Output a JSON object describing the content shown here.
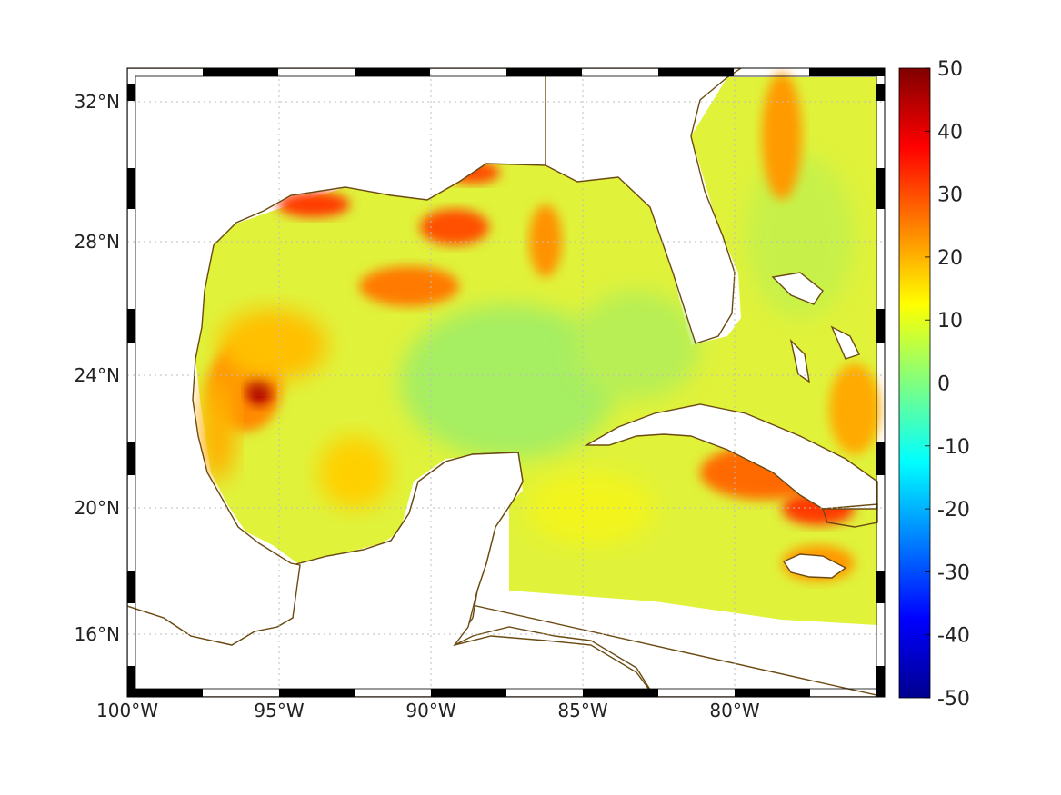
{
  "map": {
    "region": "Gulf of Mexico and western Caribbean",
    "projection": "mercator",
    "lon_range": [
      -100,
      -75
    ],
    "lat_range": [
      14.3,
      33
    ],
    "graticule": "dotted grid every 5 deg longitude and 4 deg latitude",
    "frame": "black and white alternating border",
    "coastline_color": "#6b4a12",
    "land_color": "#ffffff"
  },
  "axes": {
    "x_ticks": [
      "100°W",
      "95°W",
      "90°W",
      "85°W",
      "80°W"
    ],
    "y_ticks": [
      "32°N",
      "28°N",
      "24°N",
      "20°N",
      "16°N"
    ]
  },
  "colorbar": {
    "colormap": "jet",
    "range": [
      -50,
      50
    ],
    "ticks": [
      "50",
      "40",
      "30",
      "20",
      "10",
      "0",
      "-10",
      "-20",
      "-30",
      "-40",
      "-50"
    ]
  },
  "field_highlights": [
    {
      "label": "hot spot west Gulf near 96W 23.5N",
      "value": 45
    },
    {
      "label": "hot band off Mississippi/Louisiana coast",
      "value": 30
    },
    {
      "label": "high over south-east Cuba",
      "value": 35
    },
    {
      "label": "high off Georgia coast near 78W 31N",
      "value": 28
    },
    {
      "label": "central Gulf background",
      "value": 8
    }
  ]
}
